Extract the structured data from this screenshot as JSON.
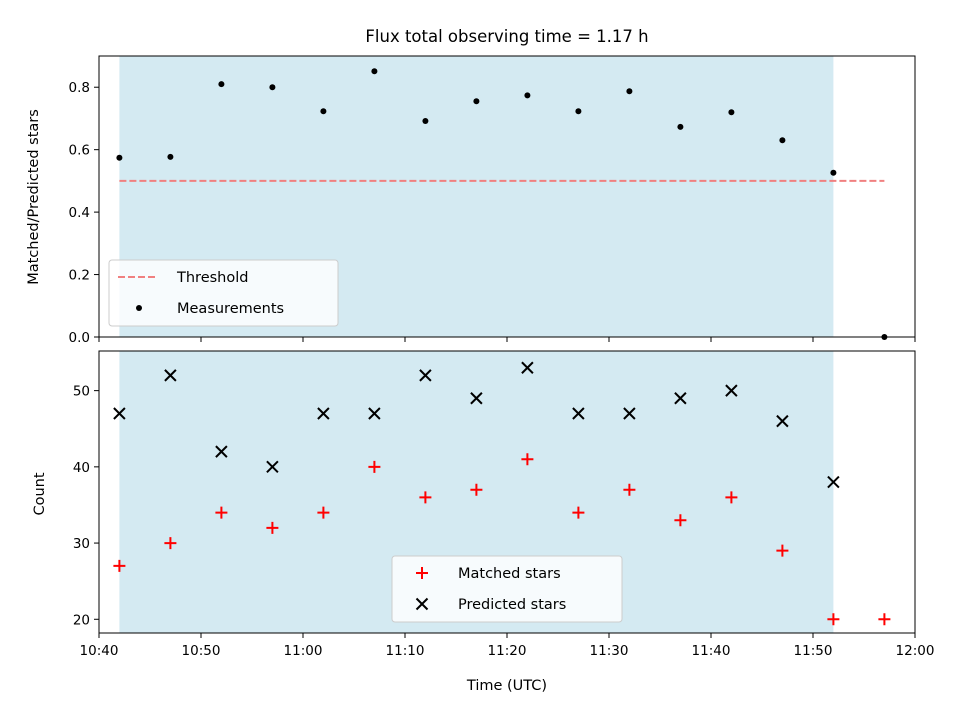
{
  "chart_data": [
    {
      "type": "scatter",
      "title": "Flux total observing time = 1.17 h",
      "xlabel": "",
      "ylabel": "Matched/Predicted stars",
      "x": [
        "10:42",
        "10:47",
        "10:52",
        "10:57",
        "11:02",
        "11:07",
        "11:12",
        "11:17",
        "11:22",
        "11:27",
        "11:32",
        "11:37",
        "11:42",
        "11:47",
        "11:52",
        "11:57"
      ],
      "xlim": [
        "10:40",
        "12:00"
      ],
      "ylim": [
        0,
        0.9
      ],
      "yticks": [
        "0.0",
        "0.2",
        "0.4",
        "0.6",
        "0.8"
      ],
      "shaded_span": {
        "x": [
          "10:42",
          "11:52"
        ],
        "color": "#add8e6"
      },
      "threshold": {
        "name": "Threshold",
        "value": 0.5,
        "x": [
          "10:42",
          "11:57"
        ],
        "color": "#f08080",
        "style": "dashed"
      },
      "series": [
        {
          "name": "Measurements",
          "marker": "dot",
          "color": "#000000",
          "values": [
            0.574,
            0.577,
            0.81,
            0.8,
            0.723,
            0.851,
            0.692,
            0.755,
            0.774,
            0.723,
            0.787,
            0.673,
            0.72,
            0.63,
            0.526,
            0.0
          ]
        }
      ],
      "legend": {
        "position": "lower-left",
        "entries": [
          "Threshold",
          "Measurements"
        ]
      }
    },
    {
      "type": "scatter",
      "title": "",
      "xlabel": "Time (UTC)",
      "ylabel": "Count",
      "x": [
        "10:42",
        "10:47",
        "10:52",
        "10:57",
        "11:02",
        "11:07",
        "11:12",
        "11:17",
        "11:22",
        "11:27",
        "11:32",
        "11:37",
        "11:42",
        "11:47",
        "11:52",
        "11:57"
      ],
      "xlim": [
        "10:40",
        "12:00"
      ],
      "xticks": [
        "10:40",
        "10:50",
        "11:00",
        "11:10",
        "11:20",
        "11:30",
        "11:40",
        "11:50",
        "12:00"
      ],
      "ylim": [
        18.2,
        55.2
      ],
      "yticks": [
        "20",
        "30",
        "40",
        "50"
      ],
      "shaded_span": {
        "x": [
          "10:42",
          "11:52"
        ],
        "color": "#add8e6"
      },
      "series": [
        {
          "name": "Matched stars",
          "marker": "plus",
          "color": "#ff0000",
          "values": [
            27,
            30,
            34,
            32,
            34,
            40,
            36,
            37,
            41,
            34,
            37,
            33,
            36,
            29,
            20,
            20
          ]
        },
        {
          "name": "Predicted stars",
          "marker": "x",
          "color": "#000000",
          "values": [
            47,
            52,
            42,
            40,
            47,
            47,
            52,
            49,
            53,
            47,
            47,
            49,
            50,
            46,
            38,
            null
          ]
        }
      ],
      "legend": {
        "position": "lower-center",
        "entries": [
          "Matched stars",
          "Predicted stars"
        ]
      }
    }
  ]
}
